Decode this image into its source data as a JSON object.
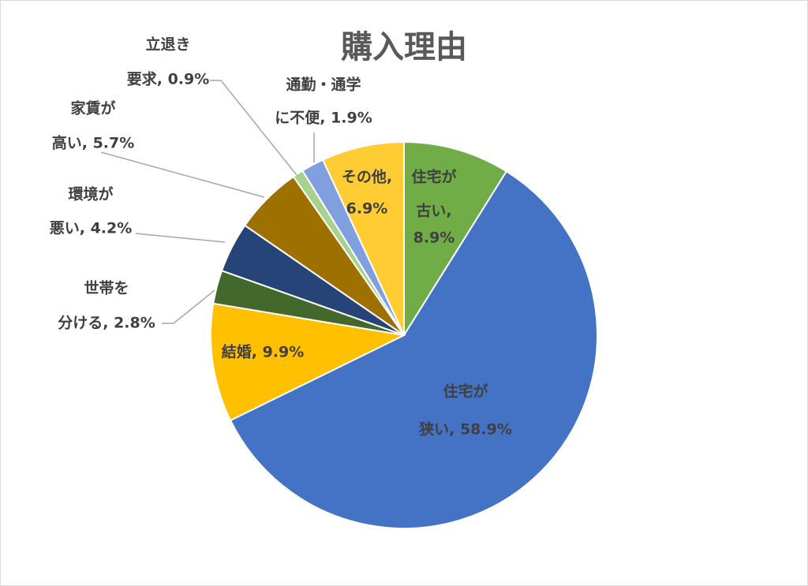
{
  "chart_data": {
    "type": "pie",
    "title": "購入理由",
    "values": [
      8.9,
      58.9,
      9.9,
      2.8,
      4.2,
      5.7,
      0.9,
      1.9,
      6.9
    ],
    "value_labels": [
      [
        "住宅が",
        "古い,",
        "8.9%"
      ],
      [
        "住宅が",
        "狭い, 58.9%"
      ],
      [
        "結婚, 9.9%"
      ],
      [
        "世帯を",
        "分ける, 2.8%"
      ],
      [
        "環境が",
        "悪い, 4.2%"
      ],
      [
        "家賃が",
        "高い, 5.7%"
      ],
      [
        "立退き",
        "要求, 0.9%"
      ],
      [
        "通勤・通学",
        "に不便, 1.9%"
      ],
      [
        "その他,",
        "6.9%"
      ]
    ],
    "colors": [
      "#70ad47",
      "#4472c4",
      "#ffc000",
      "#43682b",
      "#264478",
      "#9e7000",
      "#a9d18e",
      "#7f9fde",
      "#ffcd33"
    ]
  }
}
